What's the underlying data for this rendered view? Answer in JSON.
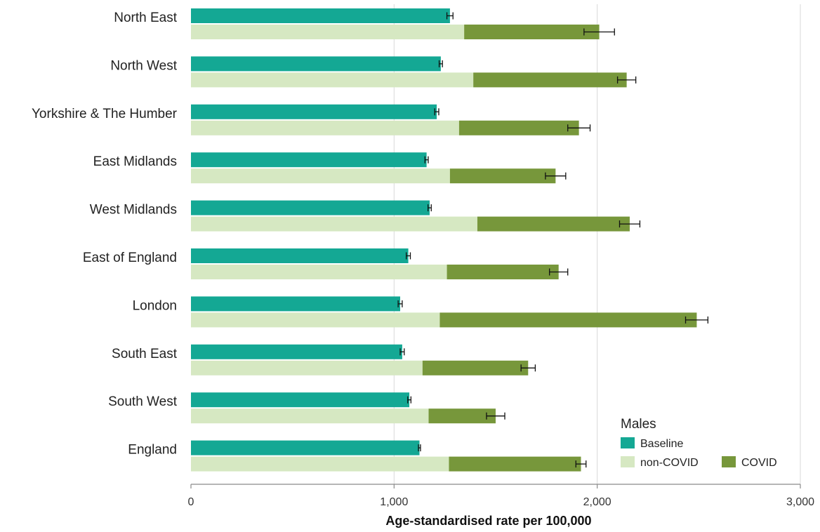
{
  "chart_data": {
    "type": "bar",
    "orientation": "horizontal",
    "categories": [
      "North East",
      "North West",
      "Yorkshire & The Humber",
      "East Midlands",
      "West Midlands",
      "East of England",
      "London",
      "South East",
      "South West",
      "England"
    ],
    "series": [
      {
        "name": "Baseline",
        "color": "#14a894",
        "values": [
          1275,
          1230,
          1210,
          1160,
          1175,
          1070,
          1030,
          1040,
          1075,
          1125
        ],
        "error": [
          15,
          8,
          10,
          8,
          8,
          10,
          10,
          10,
          8,
          5
        ]
      },
      {
        "name": "non-COVID",
        "color": "#d6e8c2",
        "stack": "2020",
        "values": [
          1345,
          1390,
          1320,
          1275,
          1410,
          1260,
          1225,
          1140,
          1170,
          1270
        ]
      },
      {
        "name": "COVID",
        "color": "#77973b",
        "stack": "2020",
        "values": [
          665,
          755,
          590,
          520,
          750,
          550,
          1265,
          520,
          330,
          650
        ],
        "error": [
          75,
          45,
          55,
          50,
          50,
          45,
          55,
          35,
          45,
          25
        ]
      }
    ],
    "xlabel": "Age-standardised rate per 100,000",
    "xlim": [
      0,
      3000
    ],
    "xticks": [
      0,
      1000,
      2000,
      3000
    ],
    "xtick_labels": [
      "0",
      "1,000",
      "2,000",
      "3,000"
    ],
    "grid": "vertical",
    "legend": {
      "title": "Males",
      "position": "bottom-right"
    }
  }
}
